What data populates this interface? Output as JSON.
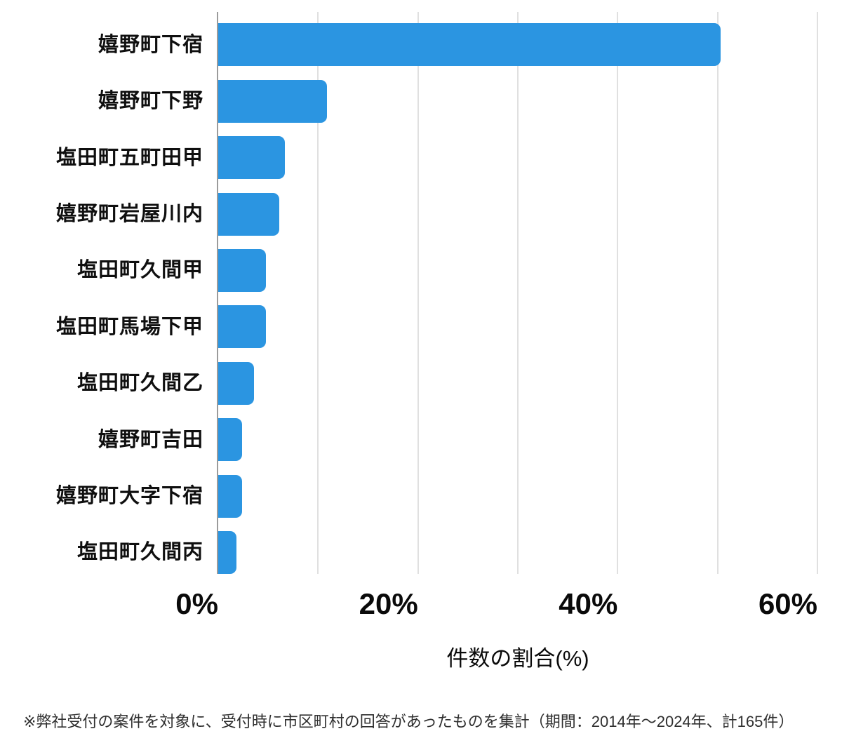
{
  "chart_data": {
    "type": "bar",
    "orientation": "horizontal",
    "title": "",
    "categories": [
      "嬉野町下宿",
      "嬉野町下野",
      "塩田町五町田甲",
      "嬉野町岩屋川内",
      "塩田町久間甲",
      "塩田町馬場下甲",
      "塩田町久間乙",
      "嬉野町吉田",
      "嬉野町大字下宿",
      "塩田町久間丙"
    ],
    "values": [
      50.3,
      10.9,
      6.7,
      6.1,
      4.8,
      4.8,
      3.6,
      2.4,
      2.4,
      1.8
    ],
    "value_unit": "%",
    "xlabel": "件数の割合(%)",
    "xlim": [
      0,
      60
    ],
    "x_ticks": [
      {
        "label": "0%",
        "pct": 0
      },
      {
        "label": "20%",
        "pct": 20
      },
      {
        "label": "40%",
        "pct": 40
      },
      {
        "label": "60%",
        "pct": 60
      }
    ],
    "gridline_percents": [
      10,
      20,
      30,
      40,
      50,
      60
    ],
    "grid": "vertical-only",
    "legend": false,
    "colors": {
      "bar": "#2b95e1",
      "grid": "#e0e0e0",
      "axis": "#9b9b9b",
      "label_text": "#0f0f0f",
      "tick_text": "#0a0a0a",
      "note_text": "#2f2f2f"
    }
  },
  "note": "※弊社受付の案件を対象に、受付時に市区町村の回答があったものを集計（期間：2014年～2024年、計165件）"
}
